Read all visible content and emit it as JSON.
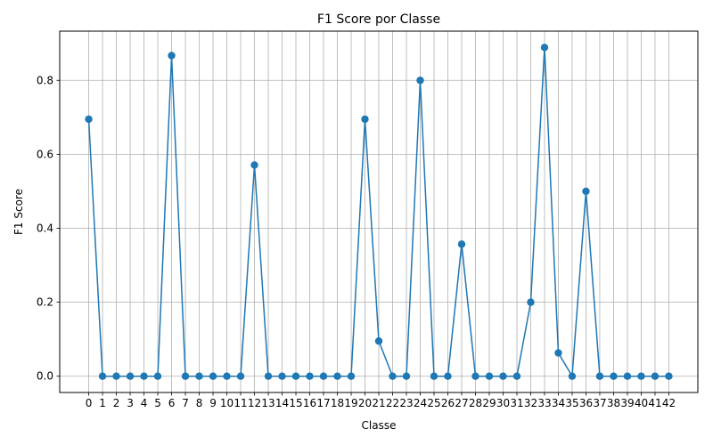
{
  "chart_data": {
    "type": "line",
    "title": "F1 Score por Classe",
    "xlabel": "Classe",
    "ylabel": "F1 Score",
    "x": [
      0,
      1,
      2,
      3,
      4,
      5,
      6,
      7,
      8,
      9,
      10,
      11,
      12,
      13,
      14,
      15,
      16,
      17,
      18,
      19,
      20,
      21,
      22,
      23,
      24,
      25,
      26,
      27,
      28,
      29,
      30,
      31,
      32,
      33,
      34,
      35,
      36,
      37,
      38,
      39,
      40,
      41,
      42
    ],
    "x_tick_labels": [
      "0",
      "1",
      "2",
      "3",
      "4",
      "5",
      "6",
      "7",
      "8",
      "9",
      "10",
      "11",
      "12",
      "13",
      "14",
      "15",
      "16",
      "17",
      "18",
      "19",
      "20",
      "21",
      "22",
      "23",
      "24",
      "25",
      "26",
      "27",
      "28",
      "29",
      "30",
      "31",
      "32",
      "33",
      "34",
      "35",
      "36",
      "37",
      "38",
      "39",
      "40",
      "41",
      "42"
    ],
    "series": [
      {
        "values": [
          0.695,
          0,
          0,
          0,
          0,
          0,
          0.867,
          0,
          0,
          0,
          0,
          0,
          0.571,
          0,
          0,
          0,
          0,
          0,
          0,
          0,
          0.695,
          0.095,
          0,
          0,
          0.8,
          0,
          0,
          0.357,
          0,
          0,
          0,
          0,
          0.2,
          0.889,
          0.063,
          0,
          0.5,
          0,
          0,
          0,
          0,
          0,
          0
        ],
        "color": "#1f77b4",
        "marker": "circle"
      }
    ],
    "y_ticks": [
      0.0,
      0.2,
      0.4,
      0.6,
      0.8
    ],
    "y_tick_labels": [
      "0.0",
      "0.2",
      "0.4",
      "0.6",
      "0.8"
    ],
    "ylim": [
      -0.044,
      0.933
    ],
    "xlim": [
      -2.1,
      44.1
    ],
    "grid": true,
    "grid_color": "#b0b0b0"
  }
}
